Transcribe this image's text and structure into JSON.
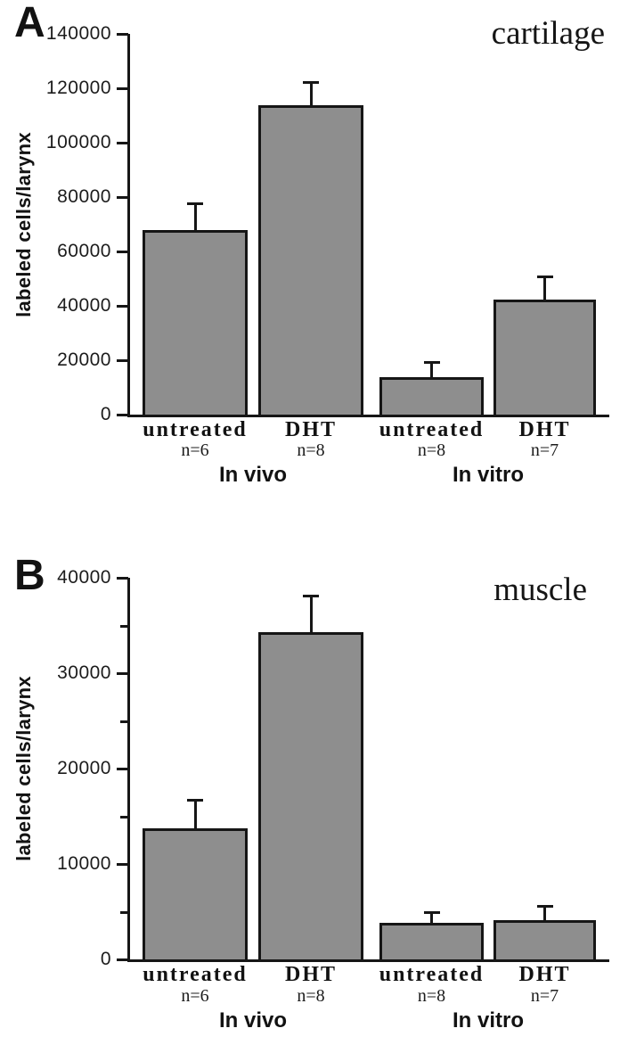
{
  "chart_data": [
    {
      "type": "bar",
      "panel_label": "A",
      "title": "cartilage",
      "ylabel": "labeled cells/larynx",
      "ylim": [
        0,
        140000
      ],
      "yticks": [
        0,
        20000,
        40000,
        60000,
        80000,
        100000,
        120000,
        140000
      ],
      "minor_tick_step": null,
      "grid": false,
      "legend": "none",
      "bar_color": "#8e8e8e",
      "bar_border_color": "#161616",
      "error_bar_direction": "plus",
      "groups": [
        {
          "label": "In vivo",
          "bars": [
            {
              "category": "untreated",
              "n": "n=6",
              "value": 68200,
              "error": 9500
            },
            {
              "category": "DHT",
              "n": "n=8",
              "value": 114000,
              "error": 8200
            }
          ]
        },
        {
          "label": "In vitro",
          "bars": [
            {
              "category": "untreated",
              "n": "n=8",
              "value": 14100,
              "error": 5200
            },
            {
              "category": "DHT",
              "n": "n=7",
              "value": 42600,
              "error": 8100
            }
          ]
        }
      ]
    },
    {
      "type": "bar",
      "panel_label": "B",
      "title": "muscle",
      "ylabel": "labeled cells/larynx",
      "ylim": [
        0,
        40000
      ],
      "yticks": [
        0,
        10000,
        20000,
        30000,
        40000
      ],
      "minor_tick_step": 5000,
      "grid": false,
      "legend": "none",
      "bar_color": "#8e8e8e",
      "bar_border_color": "#161616",
      "error_bar_direction": "plus",
      "groups": [
        {
          "label": "In vivo",
          "bars": [
            {
              "category": "untreated",
              "n": "n=6",
              "value": 13800,
              "error": 2900
            },
            {
              "category": "DHT",
              "n": "n=8",
              "value": 34400,
              "error": 3700
            }
          ]
        },
        {
          "label": "In vitro",
          "bars": [
            {
              "category": "untreated",
              "n": "n=8",
              "value": 3900,
              "error": 1100
            },
            {
              "category": "DHT",
              "n": "n=7",
              "value": 4200,
              "error": 1400
            }
          ]
        }
      ]
    }
  ]
}
